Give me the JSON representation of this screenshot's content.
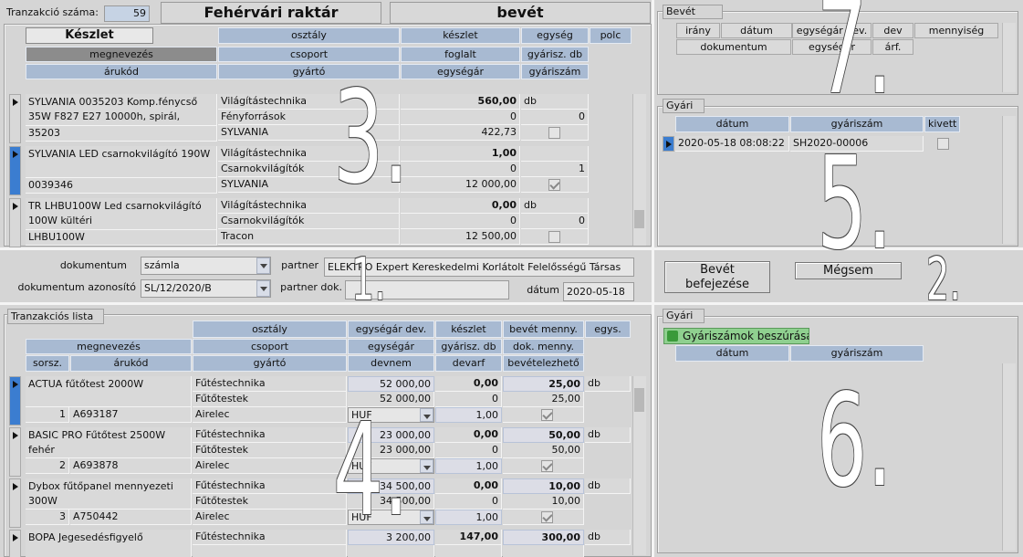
{
  "header": {
    "transaction_label": "Tranzakció száma:",
    "transaction_number": "59",
    "warehouse": "Fehérvári raktár",
    "mode": "bevét"
  },
  "stock": {
    "marker": "3.",
    "headers": [
      [
        "Készlet",
        "osztály",
        "készlet",
        "egység",
        "polc"
      ],
      [
        "megnevezés",
        "csoport",
        "foglalt",
        "gyárisz. db"
      ],
      [
        "árukód",
        "gyártó",
        "egységár",
        "gyáriszám"
      ]
    ],
    "rows": [
      {
        "name": "SYLVANIA 0035203 Komp.fénycső 35W F827 E27 10000h, spirál,",
        "code": "35203",
        "class": "Világítástechnika",
        "group": "Fényforrások",
        "manufacturer": "SYLVANIA",
        "stock": "560,00",
        "reserved": "0",
        "unit_price": "422,73",
        "unit": "db",
        "serial_count": "0",
        "serial": false
      },
      {
        "name": "SYLVANIA LED csarnokvilágító 190W",
        "code": "0039346",
        "class": "Világítástechnika",
        "group": "Csarnokvilágítók",
        "manufacturer": "SYLVANIA",
        "stock": "1,00",
        "reserved": "0",
        "unit_price": "12 000,00",
        "unit": null,
        "serial_count": "1",
        "serial": true
      },
      {
        "name": "TR LHBU100W Led csarnokvilágító 100W kültéri",
        "code": "LHBU100W",
        "class": "Világítástechnika",
        "group": "Csarnokvilágítók",
        "manufacturer": "Tracon",
        "stock": "0,00",
        "reserved": "0",
        "unit_price": "12 500,00",
        "unit": "db",
        "serial_count": "0",
        "serial": false
      }
    ]
  },
  "document": {
    "marker": "1.",
    "document_label": "dokumentum",
    "document_value": "számla",
    "partner_label": "partner",
    "partner_value": "ELEKTRO Expert Kereskedelmi Korlátolt Felelősségű Társas",
    "id_label": "dokumentum azonosító",
    "id_value": "SL/12/2020/B",
    "partner_doc_label": "partner dok.",
    "date_label": "dátum",
    "date_value": "2020-05-18"
  },
  "actions": {
    "marker": "2.",
    "finish": "Bevét befejezése",
    "cancel": "Mégsem"
  },
  "transactions": {
    "title": "Tranzakciós lista",
    "marker": "4.",
    "headers": [
      [
        "osztály",
        "egységár dev.",
        "készlet",
        "bevét menny.",
        "egys."
      ],
      [
        "megnevezés",
        "csoport",
        "egységár",
        "gyárisz. db",
        "dok. menny."
      ],
      [
        "sorsz.",
        "árukód",
        "gyártó",
        "devnem",
        "devarf",
        "bevételezhető"
      ]
    ],
    "rows": [
      {
        "name": "ACTUA fűtőtest 2000W",
        "serial_no": "1",
        "code": "A693187",
        "class": "Fűtéstechnika",
        "group": "Fűtőtestek",
        "manufacturer": "Airelec",
        "price_dev": "52 000,00",
        "price": "52 000,00",
        "currency": "HUF",
        "stock": "0,00",
        "serial_count": "0",
        "rate": "1,00",
        "qty": "25,00",
        "doc_qty": "25,00",
        "unit": "db",
        "receivable": true
      },
      {
        "name": "BASIC PRO Fűtőtest 2500W fehér",
        "serial_no": "2",
        "code": "A693878",
        "class": "Fűtéstechnika",
        "group": "Fűtőtestek",
        "manufacturer": "Airelec",
        "price_dev": "23 000,00",
        "price": "23 000,00",
        "currency": "HUF",
        "stock": "0,00",
        "serial_count": "0",
        "rate": "1,00",
        "qty": "50,00",
        "doc_qty": "50,00",
        "unit": "db",
        "receivable": true
      },
      {
        "name": "Dybox fűtőpanel mennyezeti 300W",
        "serial_no": "3",
        "code": "A750442",
        "class": "Fűtéstechnika",
        "group": "Fűtőtestek",
        "manufacturer": "Airelec",
        "price_dev": "34 500,00",
        "price": "34 500,00",
        "currency": "HUF",
        "stock": "0,00",
        "serial_count": "0",
        "rate": "1,00",
        "qty": "10,00",
        "doc_qty": "10,00",
        "unit": "db",
        "receivable": true
      },
      {
        "name": "BOPA Jegesedésfigyelő",
        "class": "Fűtéstechnika",
        "price_dev": "3 200,00",
        "stock": "147,00",
        "qty": "300,00",
        "unit": "db"
      }
    ]
  },
  "receipt": {
    "title": "Bevét",
    "marker": "7.",
    "headers": [
      [
        "irány",
        "dátum",
        "egységár dev.",
        "dev",
        "mennyiség"
      ],
      [
        "dokumentum",
        "egységár",
        "árf."
      ]
    ]
  },
  "serials": {
    "title": "Gyári",
    "marker": "5.",
    "headers": [
      "dátum",
      "gyáriszám",
      "kivett"
    ],
    "rows": [
      {
        "date": "2020-05-18 08:08:22",
        "serial": "SH2020-00006",
        "taken": false
      }
    ]
  },
  "new_serials": {
    "title": "Gyári",
    "marker": "6.",
    "button": "Gyáriszámok beszúrása",
    "headers": [
      "dátum",
      "gyáriszám"
    ]
  }
}
